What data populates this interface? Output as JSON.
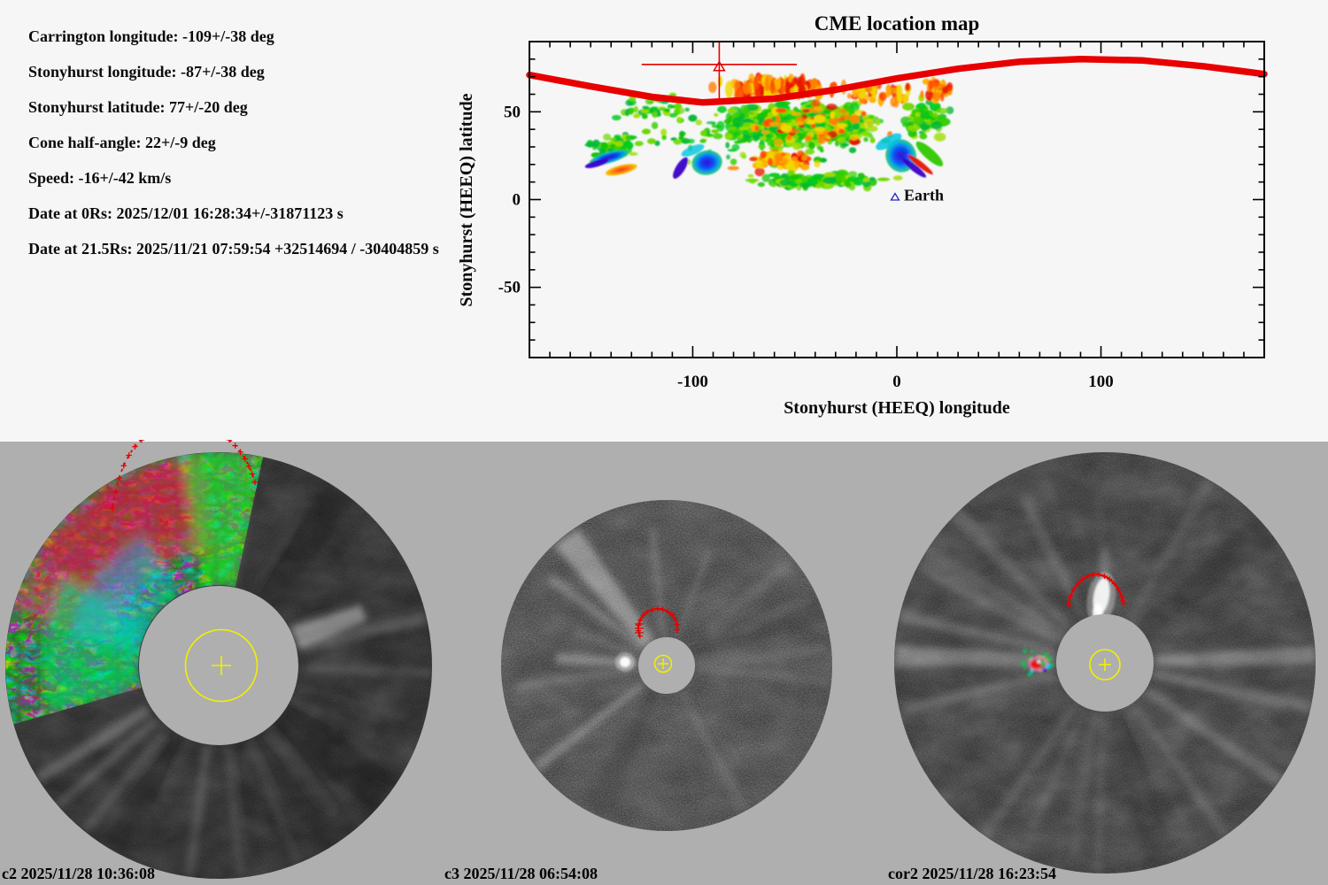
{
  "app": {
    "background_top": "#F6F6F6",
    "background_bottom": "#AFAFAF",
    "accent_red": "#E80000",
    "accent_yellow": "#F0F000",
    "earth_blue": "#2020CC"
  },
  "params": {
    "lines": [
      "Carrington longitude: -109+/-38 deg",
      "Stonyhurst longitude: -87+/-38 deg",
      "Stonyhurst latitude: 77+/-20 deg",
      "Cone half-angle: 22+/-9 deg",
      "Speed: -16+/-42 km/s",
      "Date at 0Rs: 2025/12/01 16:28:34+/-31871123 s",
      "Date at 21.5Rs: 2025/11/21 07:59:54 +32514694 / -30404859 s"
    ]
  },
  "chart_data": {
    "type": "heatmap",
    "title": "CME location map",
    "xlabel": "Stonyhurst (HEEQ) longitude",
    "ylabel": "Stonyhurst (HEEQ) latitude",
    "xlim": [
      -180,
      180
    ],
    "ylim": [
      -90,
      90
    ],
    "x_major_ticks": [
      -100,
      0,
      100
    ],
    "x_minor_step": 10,
    "y_major_ticks": [
      50,
      0,
      -50
    ],
    "y_minor_step": 10,
    "grid": false,
    "cme_marker": {
      "lon": -87,
      "lat": 77,
      "lon_err": 38,
      "lat_err": 20,
      "color": "#E80000"
    },
    "earth_marker": {
      "lon": 0,
      "lat": 1.5,
      "label": "Earth",
      "color": "#2020CC"
    },
    "limb_curve": {
      "color": "#E80000",
      "width": 7.5,
      "points": [
        [
          -180,
          71
        ],
        [
          -150,
          64.5
        ],
        [
          -120,
          58.5
        ],
        [
          -95,
          55.3
        ],
        [
          -60,
          57.5
        ],
        [
          -30,
          62.5
        ],
        [
          0,
          69
        ],
        [
          30,
          74.5
        ],
        [
          60,
          78.5
        ],
        [
          90,
          80
        ],
        [
          120,
          79.3
        ],
        [
          150,
          76
        ],
        [
          180,
          71.5
        ]
      ]
    },
    "density_field": {
      "extent": {
        "lon": [
          -168,
          38
        ],
        "lat": [
          2,
          77
        ]
      },
      "palettes": {
        "greens": [
          "#14c400",
          "#3ad000",
          "#6cd900",
          "#9fdf00",
          "#00b838",
          "#00cc1e"
        ],
        "warms": [
          "#e81400",
          "#ff4e00",
          "#ff8200",
          "#ffae00",
          "#f0d800"
        ]
      },
      "clusters": [
        {
          "seed": 11,
          "n": 480,
          "lon": -48,
          "slon": 46,
          "lat": 43,
          "slat": 15,
          "palette": "greens",
          "rx": 2.6,
          "ry": 2.2
        },
        {
          "seed": 22,
          "n": 170,
          "lon": -60,
          "slon": 80,
          "lat": 36,
          "slat": 20,
          "palette": "greens",
          "rx": 1.8,
          "ry": 1.5
        },
        {
          "seed": 33,
          "n": 70,
          "lon": -40,
          "slon": 46,
          "lat": 42,
          "slat": 16,
          "palette": "warms",
          "rx": 2.0,
          "ry": 1.8
        },
        {
          "seed": 44,
          "n": 130,
          "lon": -58,
          "slon": 36,
          "lat": 64,
          "slat": 6.5,
          "palette": "warms",
          "rx": 1.6,
          "ry": 3.6
        },
        {
          "seed": 55,
          "n": 70,
          "lon": -56,
          "slon": 26,
          "lat": 22,
          "slat": 7,
          "palette": "warms",
          "rx": 2.2,
          "ry": 2.0
        },
        {
          "seed": 66,
          "n": 120,
          "lon": -40,
          "slon": 42,
          "lat": 11,
          "slat": 5.5,
          "palette": "greens",
          "rx": 2.4,
          "ry": 1.8
        },
        {
          "seed": 77,
          "n": 80,
          "lon": 14,
          "slon": 14,
          "lat": 46,
          "slat": 13,
          "palette": "greens",
          "rx": 2.2,
          "ry": 2.0
        },
        {
          "seed": 88,
          "n": 60,
          "lon": -138,
          "slon": 16,
          "lat": 30,
          "slat": 10,
          "palette": "greens",
          "rx": 2.0,
          "ry": 1.7
        },
        {
          "seed": 99,
          "n": 50,
          "lon": -120,
          "slon": 28,
          "lat": 52,
          "slat": 10,
          "palette": "greens",
          "rx": 1.8,
          "ry": 1.5
        },
        {
          "seed": 111,
          "n": 40,
          "lon": 20,
          "slon": 10,
          "lat": 62,
          "slat": 8,
          "palette": "warms",
          "rx": 1.5,
          "ry": 2.2
        },
        {
          "seed": 122,
          "n": 45,
          "lon": -10,
          "slon": 25,
          "lat": 60,
          "slat": 8,
          "palette": "warms",
          "rx": 1.5,
          "ry": 2.6
        }
      ],
      "patches": [
        {
          "lon": -141,
          "lat": 24,
          "rlon": 10,
          "rlat": 3.2,
          "rot": -16,
          "fill": "blue"
        },
        {
          "lon": -147,
          "lat": 20.5,
          "rlon": 6,
          "rlat": 1.8,
          "rot": -16,
          "fill": "purple"
        },
        {
          "lon": -135,
          "lat": 17,
          "rlon": 8,
          "rlat": 2.6,
          "rot": -14,
          "fill": "orange"
        },
        {
          "lon": -106,
          "lat": 18,
          "rlon": 2.2,
          "rlat": 7,
          "rot": 32,
          "fill": "purple"
        },
        {
          "lon": -93,
          "lat": 21,
          "rlon": 7.5,
          "rlat": 7,
          "rot": -10,
          "fill": "blue"
        },
        {
          "lon": -100,
          "lat": 28,
          "rlon": 6,
          "rlat": 2.5,
          "rot": -22,
          "fill": "cyan",
          "opacity": 0.8
        },
        {
          "lon": 2,
          "lat": 25,
          "rlon": 7.5,
          "rlat": 9.5,
          "rot": -16,
          "fill": "blue"
        },
        {
          "lon": -4,
          "lat": 33,
          "rlon": 7,
          "rlat": 3.2,
          "rot": -28,
          "fill": "cyan",
          "opacity": 0.85
        },
        {
          "lon": 8.5,
          "lat": 18,
          "rlon": 1.6,
          "rlat": 8.5,
          "rot": -52,
          "fill": "purple"
        },
        {
          "lon": 11.5,
          "lat": 20,
          "rlon": 1.4,
          "rlat": 9,
          "rot": -52,
          "fill": "red"
        },
        {
          "lon": 16,
          "lat": 26,
          "rlon": 2.6,
          "rlat": 10,
          "rot": -48,
          "fill": "green"
        }
      ]
    }
  },
  "coronagraphs": [
    {
      "instrument": "c2",
      "label": "c2 2025/11/28 10:36:08"
    },
    {
      "instrument": "c3",
      "label": "c3 2025/11/28 06:54:08"
    },
    {
      "instrument": "cor2",
      "label": "cor2 2025/11/28 16:23:54"
    }
  ]
}
